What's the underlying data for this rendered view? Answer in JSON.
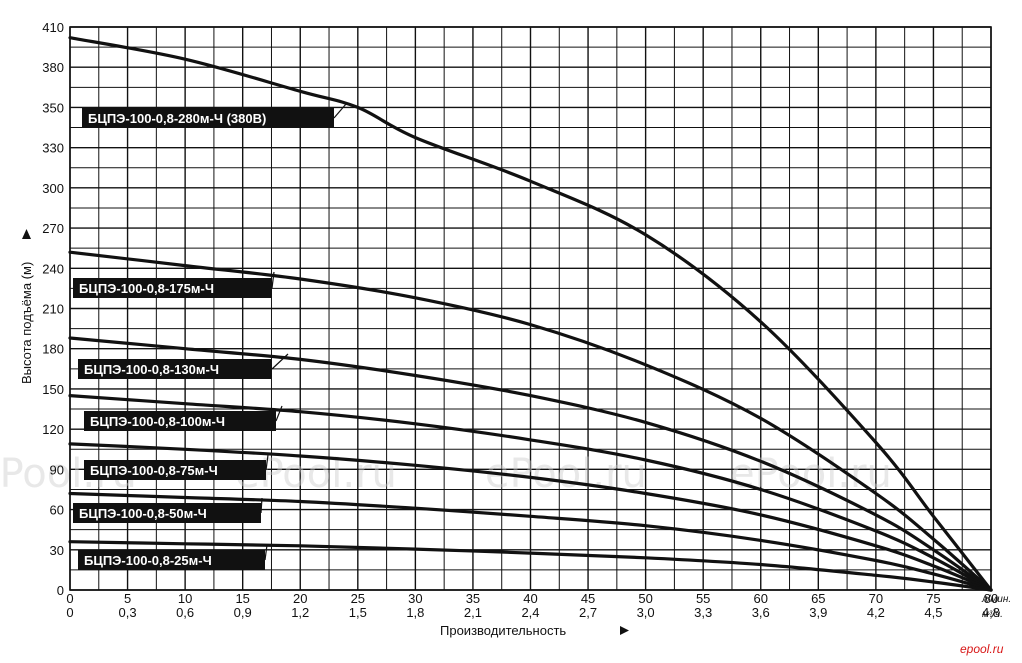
{
  "chart_data": {
    "type": "line",
    "ylabel": "Высота подъёма (м)",
    "xlabel": "Производительность",
    "x_unit_primary": "л/мин.",
    "x_unit_secondary": "м³/ч.",
    "x_ticks_primary": [
      "0",
      "5",
      "10",
      "15",
      "20",
      "25",
      "30",
      "35",
      "40",
      "45",
      "50",
      "55",
      "60",
      "65",
      "70",
      "75",
      "80"
    ],
    "x_ticks_secondary": [
      "0",
      "0,3",
      "0,6",
      "0,9",
      "1,2",
      "1,5",
      "1,8",
      "2,1",
      "2,4",
      "2,7",
      "3,0",
      "3,3",
      "3,6",
      "3,9",
      "4,2",
      "4,5",
      "4,8"
    ],
    "xlim": [
      0,
      80
    ],
    "y_ticks": [
      "0",
      "30",
      "60",
      "90",
      "120",
      "150",
      "180",
      "210",
      "240",
      "270",
      "300",
      "330",
      "350",
      "380",
      "410"
    ],
    "grid": true,
    "series": [
      {
        "name": "БЦПЭ-100-0,8-280м-Ч (380В)",
        "x": [
          0,
          10,
          20,
          25,
          30,
          40,
          50,
          60,
          70,
          75,
          80
        ],
        "y": [
          402,
          386,
          362,
          350,
          335,
          305,
          265,
          200,
          110,
          55,
          0
        ]
      },
      {
        "name": "БЦПЭ-100-0,8-175м-Ч",
        "x": [
          0,
          10,
          20,
          30,
          40,
          50,
          60,
          70,
          75,
          80
        ],
        "y": [
          252,
          242,
          232,
          218,
          198,
          168,
          128,
          72,
          38,
          0
        ]
      },
      {
        "name": "БЦПЭ-100-0,8-130м-Ч",
        "x": [
          0,
          10,
          20,
          30,
          40,
          50,
          60,
          70,
          75,
          80
        ],
        "y": [
          188,
          180,
          172,
          160,
          145,
          125,
          96,
          56,
          30,
          0
        ]
      },
      {
        "name": "БЦПЭ-100-0,8-100м-Ч",
        "x": [
          0,
          10,
          20,
          30,
          40,
          50,
          60,
          70,
          75,
          80
        ],
        "y": [
          145,
          139,
          133,
          124,
          112,
          97,
          75,
          44,
          24,
          0
        ]
      },
      {
        "name": "БЦПЭ-100-0,8-75м-Ч",
        "x": [
          0,
          10,
          20,
          30,
          40,
          50,
          60,
          70,
          75,
          80
        ],
        "y": [
          109,
          105,
          100,
          93,
          84,
          72,
          56,
          33,
          18,
          0
        ]
      },
      {
        "name": "БЦПЭ-100-0,8-50м-Ч",
        "x": [
          0,
          10,
          20,
          30,
          40,
          50,
          60,
          70,
          75,
          80
        ],
        "y": [
          72,
          69,
          66,
          61,
          55,
          48,
          37,
          22,
          12,
          0
        ]
      },
      {
        "name": "БЦПЭ-100-0,8-25м-Ч",
        "x": [
          0,
          10,
          20,
          30,
          40,
          50,
          60,
          70,
          75,
          80
        ],
        "y": [
          36,
          34.5,
          33,
          30.5,
          27.5,
          24,
          19,
          11,
          6,
          0
        ]
      }
    ]
  },
  "watermarks": [
    "ePool.ru",
    "ePool.ru",
    "ePool.ru",
    "ePool.ru"
  ],
  "logo": "epool.ru"
}
